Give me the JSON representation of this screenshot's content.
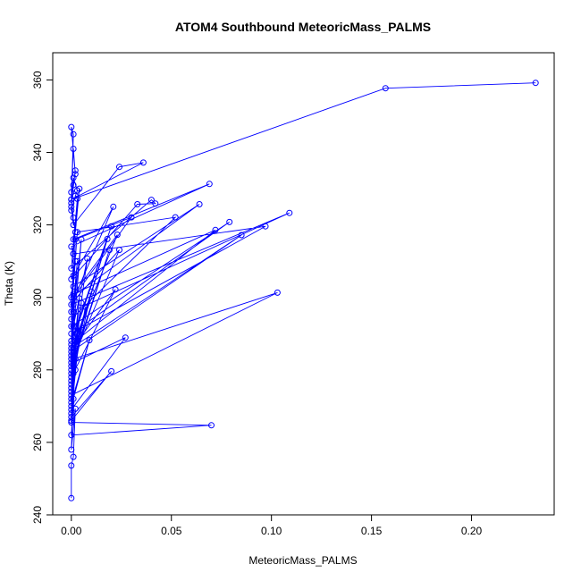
{
  "chart_data": {
    "type": "line",
    "title": "ATOM4 Southbound MeteoricMass_PALMS",
    "xlabel": "MeteoricMass_PALMS",
    "ylabel": "Theta (K)",
    "xlim": [
      -0.0093,
      0.2413
    ],
    "ylim": [
      240,
      367.5
    ],
    "x_ticks": [
      0,
      0.05,
      0.1,
      0.15,
      0.2
    ],
    "x_tick_labels": [
      "0.00",
      "0.05",
      "0.10",
      "0.15",
      "0.20"
    ],
    "y_ticks": [
      240,
      260,
      280,
      300,
      320,
      340,
      360
    ],
    "y_tick_labels": [
      "240",
      "260",
      "280",
      "300",
      "320",
      "340",
      "360"
    ],
    "grid": false,
    "series_color": "#0000ff",
    "marker": "open-circle",
    "series": [
      {
        "x": [
          0.232,
          0.157,
          0.0,
          0.001,
          0.0,
          0.002,
          0.001,
          0.0,
          0.001,
          0.002,
          0.0,
          0.001,
          0.003,
          0.002,
          0.0,
          0.001,
          0.0,
          0.036,
          0.024,
          0.001,
          0.0,
          0.002,
          0.004,
          0.001,
          0.069,
          0.0,
          0.001,
          0.003,
          0.0,
          0.04,
          0.042,
          0.033,
          0.0,
          0.002,
          0.001,
          0.064,
          0.0,
          0.001,
          0.021,
          0.0,
          0.109,
          0.0,
          0.003,
          0.052,
          0.0,
          0.001,
          0.03,
          0.002,
          0.0,
          0.079,
          0.0,
          0.097,
          0.001,
          0.0,
          0.02,
          0.0,
          0.072,
          0.001,
          0.023,
          0.0,
          0.085,
          0.0,
          0.003,
          0.001,
          0.0,
          0.005,
          0.001,
          0.0,
          0.018,
          0.0,
          0.024,
          0.001,
          0.002,
          0.0,
          0.019,
          0.0,
          0.001,
          0.008,
          0.0,
          0.002,
          0.022,
          0.0,
          0.001,
          0.01,
          0.0,
          0.003,
          0.0,
          0.001,
          0.005,
          0.0,
          0.007,
          0.0,
          0.001,
          0.103,
          0.0,
          0.002,
          0.0,
          0.004,
          0.001,
          0.0,
          0.009,
          0.0,
          0.001,
          0.027,
          0.0,
          0.002,
          0.0,
          0.004,
          0.001,
          0.0,
          0.02,
          0.0,
          0.002,
          0.001,
          0.0,
          0.07,
          0.0,
          0.001,
          0.0,
          0.002,
          0.001,
          0.0,
          0.0
        ],
        "y": [
          359.2,
          357.7,
          327.0,
          345.0,
          347.0,
          334.0,
          341.0,
          329.0,
          331.0,
          335.0,
          326.0,
          333.0,
          329.5,
          328.0,
          324.0,
          322.0,
          327.0,
          337.2,
          336.0,
          320.0,
          325.0,
          318.0,
          330.0,
          316.0,
          331.3,
          314.0,
          312.0,
          327.2,
          308.0,
          326.9,
          325.9,
          325.7,
          305.0,
          310.0,
          303.0,
          325.7,
          300.0,
          306.0,
          325.0,
          298.0,
          323.3,
          296.0,
          318.0,
          322.1,
          294.0,
          300.0,
          322.1,
          316.0,
          292.0,
          320.8,
          290.0,
          319.6,
          312.0,
          288.0,
          319.6,
          287.0,
          318.6,
          301.0,
          317.3,
          286.0,
          317.2,
          285.0,
          310.0,
          298.0,
          284.0,
          316.0,
          296.0,
          283.0,
          316.1,
          282.0,
          313.1,
          299.0,
          289.0,
          281.0,
          313.1,
          280.0,
          292.0,
          310.7,
          279.0,
          287.0,
          302.2,
          278.0,
          286.0,
          301.6,
          277.0,
          290.0,
          276.0,
          284.0,
          298.5,
          275.0,
          297.4,
          274.0,
          283.0,
          301.3,
          273.0,
          288.0,
          272.0,
          299.7,
          285.0,
          271.0,
          288.2,
          270.0,
          282.0,
          288.9,
          269.0,
          280.0,
          268.0,
          290.0,
          279.0,
          267.0,
          279.6,
          266.0,
          283.0,
          281.0,
          265.5,
          264.7,
          262.0,
          272.0,
          258.0,
          269.3,
          256.0,
          253.6,
          244.6
        ]
      }
    ]
  }
}
